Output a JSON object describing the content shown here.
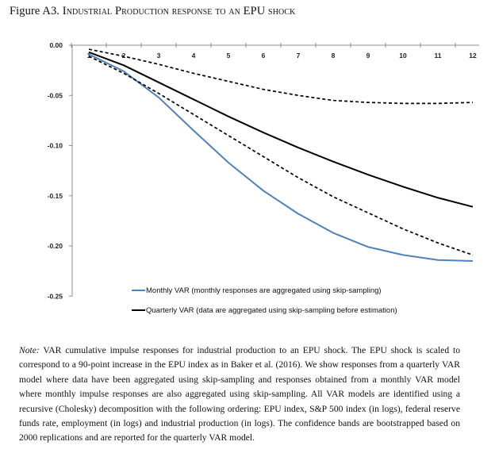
{
  "figure": {
    "label": "Figure A3.",
    "title": "Industrial Production response to an EPU shock"
  },
  "note": {
    "label": "Note:",
    "text": "VAR cumulative impulse responses for industrial production to an EPU shock. The EPU shock is scaled to correspond to a 90-point increase in the EPU index as in Baker et al. (2016). We show responses from a quarterly VAR model where data have been aggregated using skip-sampling and responses obtained from a monthly VAR model where monthly impulse responses are also aggregated using skip-sampling. All VAR models are identified using a recursive (Cholesky) decomposition with the following ordering: EPU index, S&P 500 index (in logs), federal reserve funds rate, employment (in logs) and industrial production (in logs). The confidence bands are bootstrapped based on 2000 replications and are reported for the quarterly VAR model."
  },
  "chart_data": {
    "type": "line",
    "x": [
      1,
      2,
      3,
      4,
      5,
      6,
      7,
      8,
      9,
      10,
      11,
      12
    ],
    "x_tick_labels": [
      "1",
      "2",
      "3",
      "4",
      "5",
      "6",
      "7",
      "8",
      "9",
      "10",
      "11",
      "12"
    ],
    "y_tick_labels": [
      "0.00",
      "-0.05",
      "-0.10",
      "-0.15",
      "-0.20",
      "-0.25"
    ],
    "y_ticks": [
      0.0,
      -0.05,
      -0.1,
      -0.15,
      -0.2,
      -0.25
    ],
    "ylim": [
      -0.25,
      0.0
    ],
    "xaxis_position": "top",
    "grid": false,
    "legend_position": "bottom-center",
    "series": [
      {
        "name": "Monthly VAR (monthly responses are aggregated using skip-sampling)",
        "color": "#4f81bd",
        "style": "solid",
        "values": [
          -0.009,
          -0.026,
          -0.052,
          -0.085,
          -0.117,
          -0.145,
          -0.168,
          -0.187,
          -0.201,
          -0.209,
          -0.214,
          -0.215
        ]
      },
      {
        "name": "Quarterly VAR (data are aggregated using skip-sampling before estimation)",
        "color": "#000000",
        "style": "solid",
        "values": [
          -0.007,
          -0.02,
          -0.037,
          -0.054,
          -0.071,
          -0.087,
          -0.102,
          -0.116,
          -0.129,
          -0.141,
          -0.152,
          -0.161
        ]
      },
      {
        "color": "#000000",
        "style": "dashed",
        "values": [
          -0.011,
          -0.028,
          -0.048,
          -0.069,
          -0.09,
          -0.111,
          -0.132,
          -0.151,
          -0.167,
          -0.183,
          -0.197,
          -0.209
        ]
      },
      {
        "color": "#000000",
        "style": "dashed",
        "values": [
          -0.004,
          -0.011,
          -0.019,
          -0.028,
          -0.036,
          -0.044,
          -0.05,
          -0.055,
          -0.057,
          -0.058,
          -0.058,
          -0.057
        ]
      }
    ]
  }
}
